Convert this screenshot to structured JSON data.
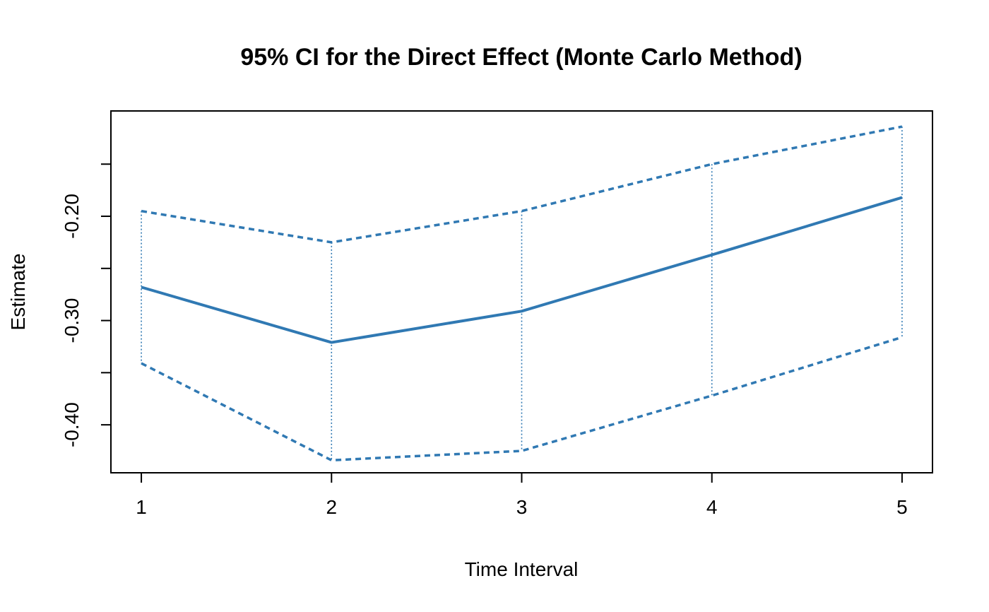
{
  "chart_data": {
    "type": "line",
    "title": "95% CI for the Direct Effect (Monte Carlo Method)",
    "xlabel": "Time Interval",
    "ylabel": "Estimate",
    "x": [
      1,
      2,
      3,
      4,
      5
    ],
    "x_tick_labels": [
      "1",
      "2",
      "3",
      "4",
      "5"
    ],
    "y_tick_values": [
      -0.4,
      -0.35,
      -0.3,
      -0.25,
      -0.2,
      -0.15
    ],
    "y_tick_labels": [
      "-0.40",
      "",
      "-0.30",
      "",
      "-0.20",
      ""
    ],
    "xlim": [
      0.84,
      5.16
    ],
    "ylim": [
      -0.446,
      -0.099
    ],
    "series": [
      {
        "role": "estimate",
        "values": [
          -0.268,
          -0.321,
          -0.291,
          -0.237,
          -0.182
        ],
        "style": "solid"
      },
      {
        "role": "upper",
        "values": [
          -0.195,
          -0.225,
          -0.195,
          -0.15,
          -0.114
        ],
        "style": "dashed"
      },
      {
        "role": "lower",
        "values": [
          -0.341,
          -0.434,
          -0.425,
          -0.372,
          -0.316
        ],
        "style": "dashed"
      }
    ],
    "ci_connectors": "dotted vertical lines between lower and upper bound at each x",
    "line_color": "#3079b3",
    "grid": false,
    "legend": "none"
  }
}
